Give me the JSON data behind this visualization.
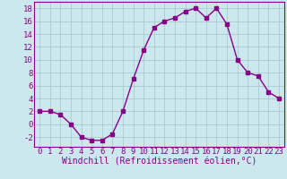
{
  "x": [
    0,
    1,
    2,
    3,
    4,
    5,
    6,
    7,
    8,
    9,
    10,
    11,
    12,
    13,
    14,
    15,
    16,
    17,
    18,
    19,
    20,
    21,
    22,
    23
  ],
  "y": [
    2,
    2,
    1.5,
    0,
    -2,
    -2.5,
    -2.5,
    -1.5,
    2,
    7,
    11.5,
    15,
    16,
    16.5,
    17.5,
    18,
    16.5,
    18,
    15.5,
    10,
    8,
    7.5,
    5,
    4
  ],
  "line_color": "#880088",
  "marker": "s",
  "marker_size": 2.5,
  "bg_color": "#cce8ee",
  "grid_color": "#aacccc",
  "xlabel": "Windchill (Refroidissement éolien,°C)",
  "xlabel_color": "#880088",
  "xlabel_fontsize": 7,
  "tick_fontsize": 6.5,
  "ylim": [
    -3.5,
    19
  ],
  "xlim": [
    -0.5,
    23.5
  ],
  "yticks": [
    -2,
    0,
    2,
    4,
    6,
    8,
    10,
    12,
    14,
    16,
    18
  ],
  "xticks": [
    0,
    1,
    2,
    3,
    4,
    5,
    6,
    7,
    8,
    9,
    10,
    11,
    12,
    13,
    14,
    15,
    16,
    17,
    18,
    19,
    20,
    21,
    22,
    23
  ]
}
